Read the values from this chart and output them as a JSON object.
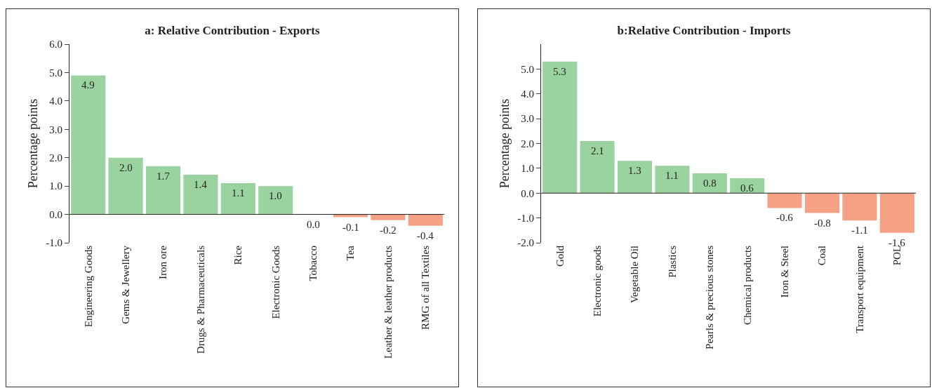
{
  "chart_data": [
    {
      "type": "bar",
      "title": "a: Relative Contribution - Exports",
      "ylabel": "Percentage points",
      "categories": [
        "Engineering Goods",
        "Gems & Jewellery",
        "Iron ore",
        "Drugs & Pharmaceuticals",
        "Rice",
        "Electronic Goods",
        "Tobacco",
        "Tea",
        "Leather & leather products",
        "RMG of all Textiles"
      ],
      "values": [
        4.9,
        2.0,
        1.7,
        1.4,
        1.1,
        1.0,
        0.0,
        -0.1,
        -0.2,
        -0.4
      ],
      "colors": [
        "#9ad3a0",
        "#9ad3a0",
        "#9ad3a0",
        "#9ad3a0",
        "#9ad3a0",
        "#9ad3a0",
        "#f4a185",
        "#f4a185",
        "#f4a185",
        "#f4a185"
      ],
      "value_labels": [
        "4.9",
        "2.0",
        "1.7",
        "1.4",
        "1.1",
        "1.0",
        "0.0",
        "-0.1",
        "-0.2",
        "-0.4"
      ],
      "ylim": [
        -1,
        6
      ],
      "yticks": [
        {
          "value": -1,
          "label": "-1.0"
        },
        {
          "value": 0,
          "label": "0.0"
        },
        {
          "value": 1,
          "label": "1.0"
        },
        {
          "value": 2,
          "label": "2.0"
        },
        {
          "value": 3,
          "label": "3.0"
        },
        {
          "value": 4,
          "label": "4.0"
        },
        {
          "value": 5,
          "label": "5.0"
        },
        {
          "value": 6,
          "label": "6.0"
        }
      ],
      "grid": false,
      "ref_lines": [
        {
          "axis": "y",
          "value": 0,
          "color": "#222222"
        }
      ]
    },
    {
      "type": "bar",
      "title": "b:Relative Contribution - Imports",
      "ylabel": "Percentage points",
      "categories": [
        "Gold",
        "Electronic goods",
        "Vegetable Oil",
        "Plastics",
        "Pearls & precious stones",
        "Chemical products",
        "Iron & Steel",
        "Coal",
        "Transport equipment",
        "POL"
      ],
      "values": [
        5.3,
        2.1,
        1.3,
        1.1,
        0.8,
        0.6,
        -0.6,
        -0.8,
        -1.1,
        -1.6
      ],
      "colors": [
        "#9ad3a0",
        "#9ad3a0",
        "#9ad3a0",
        "#9ad3a0",
        "#9ad3a0",
        "#9ad3a0",
        "#f4a185",
        "#f4a185",
        "#f4a185",
        "#f4a185"
      ],
      "value_labels": [
        "5.3",
        "2.1",
        "1.3",
        "1.1",
        "0.8",
        "0.6",
        "-0.6",
        "-0.8",
        "-1.1",
        "-1.6"
      ],
      "ylim": [
        -2,
        6
      ],
      "yticks": [
        {
          "value": -2,
          "label": "-2.0"
        },
        {
          "value": -1,
          "label": "-1.0"
        },
        {
          "value": 0,
          "label": "0.0"
        },
        {
          "value": 1,
          "label": "1.0"
        },
        {
          "value": 2,
          "label": "2.0"
        },
        {
          "value": 3,
          "label": "3.0"
        },
        {
          "value": 4,
          "label": "4.0"
        },
        {
          "value": 5,
          "label": "5.0"
        }
      ],
      "grid": false,
      "ref_lines": [
        {
          "axis": "y",
          "value": 0,
          "color": "#222222"
        }
      ]
    }
  ]
}
